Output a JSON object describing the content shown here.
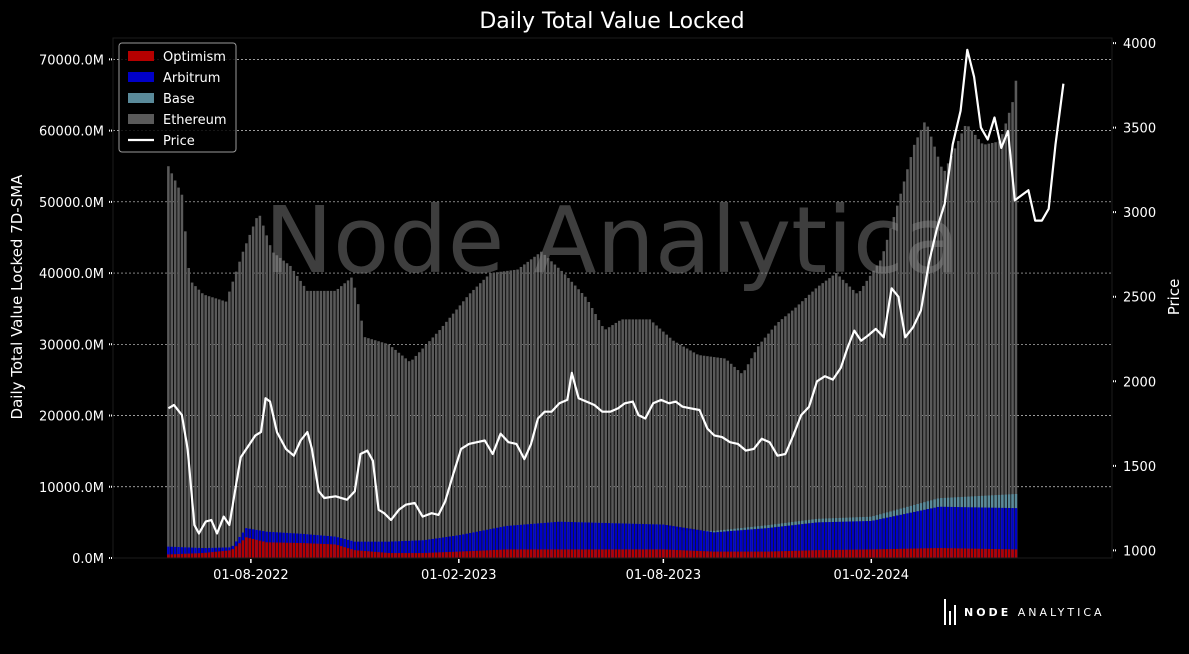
{
  "chart_data": {
    "type": "bar",
    "title": "Daily Total Value Locked",
    "ylabel": "Daily Total Value Locked 7D-SMA",
    "y2label": "Price",
    "ylim": [
      0,
      73000
    ],
    "y2lim": [
      955,
      4030
    ],
    "yticks": [
      "0.0M",
      "10000.0M",
      "20000.0M",
      "30000.0M",
      "40000.0M",
      "50000.0M",
      "60000.0M",
      "70000.0M"
    ],
    "y2ticks": [
      "1000",
      "1500",
      "2000",
      "2500",
      "3000",
      "3500",
      "4000"
    ],
    "xticks": [
      "01-08-2022",
      "01-02-2023",
      "01-08-2023",
      "01-02-2024"
    ],
    "xtick_dates": [
      "2022-08-01",
      "2023-02-01",
      "2023-08-01",
      "2024-02-01"
    ],
    "xlim": [
      "2022-04-01",
      "2024-09-01"
    ],
    "first_bar_date": "2022-05-20",
    "last_bar_date": "2024-06-10",
    "stacked": true,
    "legend_position": "top-left",
    "grid": "horizontal dashed",
    "watermark": "Node Analytica",
    "series": [
      {
        "name": "Optimism",
        "color": "#b50000",
        "points": [
          [
            "2022-05-20",
            500
          ],
          [
            "2022-06-20",
            700
          ],
          [
            "2022-07-15",
            1100
          ],
          [
            "2022-07-28",
            2900
          ],
          [
            "2022-08-15",
            2200
          ],
          [
            "2022-09-15",
            2100
          ],
          [
            "2022-10-15",
            1900
          ],
          [
            "2022-11-01",
            1100
          ],
          [
            "2022-12-01",
            700
          ],
          [
            "2023-01-01",
            700
          ],
          [
            "2023-02-01",
            900
          ],
          [
            "2023-03-15",
            1200
          ],
          [
            "2023-05-01",
            1200
          ],
          [
            "2023-06-15",
            1200
          ],
          [
            "2023-08-01",
            1200
          ],
          [
            "2023-09-15",
            900
          ],
          [
            "2023-11-01",
            900
          ],
          [
            "2023-12-15",
            1100
          ],
          [
            "2024-02-01",
            1200
          ],
          [
            "2024-04-01",
            1400
          ],
          [
            "2024-06-10",
            1200
          ]
        ]
      },
      {
        "name": "Arbitrum",
        "color": "#0000c8",
        "points": [
          [
            "2022-05-20",
            1600
          ],
          [
            "2022-06-20",
            1400
          ],
          [
            "2022-07-15",
            1500
          ],
          [
            "2022-07-28",
            4200
          ],
          [
            "2022-08-15",
            3700
          ],
          [
            "2022-09-15",
            3400
          ],
          [
            "2022-10-15",
            3000
          ],
          [
            "2022-11-01",
            2300
          ],
          [
            "2022-12-01",
            2300
          ],
          [
            "2023-01-01",
            2500
          ],
          [
            "2023-02-01",
            3200
          ],
          [
            "2023-03-15",
            4500
          ],
          [
            "2023-05-01",
            5100
          ],
          [
            "2023-06-15",
            4900
          ],
          [
            "2023-08-01",
            4700
          ],
          [
            "2023-09-15",
            3600
          ],
          [
            "2023-11-01",
            4200
          ],
          [
            "2023-12-15",
            5000
          ],
          [
            "2024-02-01",
            5200
          ],
          [
            "2024-04-01",
            7200
          ],
          [
            "2024-06-10",
            7000
          ]
        ]
      },
      {
        "name": "Base",
        "color": "#5a8a9a",
        "points": [
          [
            "2022-05-20",
            1600
          ],
          [
            "2022-06-20",
            1400
          ],
          [
            "2022-07-15",
            1500
          ],
          [
            "2022-07-28",
            4200
          ],
          [
            "2022-08-15",
            3700
          ],
          [
            "2022-09-15",
            3400
          ],
          [
            "2022-10-15",
            3000
          ],
          [
            "2022-11-01",
            2300
          ],
          [
            "2022-12-01",
            2300
          ],
          [
            "2023-01-01",
            2500
          ],
          [
            "2023-02-01",
            3200
          ],
          [
            "2023-03-15",
            4500
          ],
          [
            "2023-05-01",
            5100
          ],
          [
            "2023-06-15",
            4900
          ],
          [
            "2023-08-01",
            4700
          ],
          [
            "2023-08-15",
            3900
          ],
          [
            "2023-09-15",
            3800
          ],
          [
            "2023-11-01",
            4600
          ],
          [
            "2023-12-15",
            5500
          ],
          [
            "2024-02-01",
            5800
          ],
          [
            "2024-04-01",
            8400
          ],
          [
            "2024-06-10",
            9000
          ]
        ]
      },
      {
        "name": "Ethereum",
        "color": "#5a5a5a",
        "points": [
          [
            "2022-05-20",
            55000
          ],
          [
            "2022-06-01",
            51000
          ],
          [
            "2022-06-08",
            39000
          ],
          [
            "2022-06-20",
            37000
          ],
          [
            "2022-07-10",
            36000
          ],
          [
            "2022-07-25",
            43000
          ],
          [
            "2022-08-08",
            48500
          ],
          [
            "2022-08-20",
            43000
          ],
          [
            "2022-09-05",
            41000
          ],
          [
            "2022-09-20",
            37500
          ],
          [
            "2022-10-15",
            37500
          ],
          [
            "2022-10-30",
            39500
          ],
          [
            "2022-11-10",
            31000
          ],
          [
            "2022-12-01",
            30000
          ],
          [
            "2022-12-20",
            27500
          ],
          [
            "2023-01-15",
            32000
          ],
          [
            "2023-02-10",
            37000
          ],
          [
            "2023-03-01",
            40000
          ],
          [
            "2023-03-25",
            40500
          ],
          [
            "2023-04-15",
            43000
          ],
          [
            "2023-05-05",
            40000
          ],
          [
            "2023-05-25",
            36500
          ],
          [
            "2023-06-10",
            32000
          ],
          [
            "2023-06-25",
            33500
          ],
          [
            "2023-07-20",
            33500
          ],
          [
            "2023-08-10",
            30500
          ],
          [
            "2023-09-01",
            28500
          ],
          [
            "2023-09-25",
            28000
          ],
          [
            "2023-10-10",
            25800
          ],
          [
            "2023-10-25",
            30000
          ],
          [
            "2023-11-10",
            33000
          ],
          [
            "2023-11-25",
            35000
          ],
          [
            "2023-12-15",
            38000
          ],
          [
            "2024-01-01",
            40000
          ],
          [
            "2024-01-20",
            37000
          ],
          [
            "2024-02-10",
            42000
          ],
          [
            "2024-02-25",
            50000
          ],
          [
            "2024-03-10",
            58000
          ],
          [
            "2024-03-20",
            61500
          ],
          [
            "2024-04-05",
            54000
          ],
          [
            "2024-04-25",
            61000
          ],
          [
            "2024-05-10",
            58000
          ],
          [
            "2024-05-25",
            58500
          ],
          [
            "2024-06-05",
            64000
          ],
          [
            "2024-06-10",
            69000
          ]
        ]
      },
      {
        "name": "Price",
        "color": "#ffffff",
        "axis": "right",
        "points": [
          [
            "2022-05-20",
            1840
          ],
          [
            "2022-05-25",
            1860
          ],
          [
            "2022-06-01",
            1800
          ],
          [
            "2022-06-06",
            1600
          ],
          [
            "2022-06-12",
            1150
          ],
          [
            "2022-06-16",
            1100
          ],
          [
            "2022-06-22",
            1170
          ],
          [
            "2022-06-27",
            1180
          ],
          [
            "2022-07-02",
            1100
          ],
          [
            "2022-07-08",
            1200
          ],
          [
            "2022-07-13",
            1150
          ],
          [
            "2022-07-18",
            1350
          ],
          [
            "2022-07-23",
            1550
          ],
          [
            "2022-07-28",
            1600
          ],
          [
            "2022-08-05",
            1680
          ],
          [
            "2022-08-10",
            1700
          ],
          [
            "2022-08-14",
            1900
          ],
          [
            "2022-08-18",
            1880
          ],
          [
            "2022-08-24",
            1700
          ],
          [
            "2022-09-01",
            1600
          ],
          [
            "2022-09-08",
            1560
          ],
          [
            "2022-09-14",
            1650
          ],
          [
            "2022-09-20",
            1700
          ],
          [
            "2022-09-24",
            1600
          ],
          [
            "2022-09-30",
            1350
          ],
          [
            "2022-10-05",
            1310
          ],
          [
            "2022-10-15",
            1320
          ],
          [
            "2022-10-25",
            1300
          ],
          [
            "2022-11-01",
            1350
          ],
          [
            "2022-11-06",
            1570
          ],
          [
            "2022-11-12",
            1590
          ],
          [
            "2022-11-17",
            1530
          ],
          [
            "2022-11-22",
            1240
          ],
          [
            "2022-11-27",
            1220
          ],
          [
            "2022-12-03",
            1180
          ],
          [
            "2022-12-10",
            1240
          ],
          [
            "2022-12-16",
            1270
          ],
          [
            "2022-12-24",
            1280
          ],
          [
            "2022-12-31",
            1200
          ],
          [
            "2023-01-08",
            1220
          ],
          [
            "2023-01-14",
            1210
          ],
          [
            "2023-01-20",
            1290
          ],
          [
            "2023-01-27",
            1450
          ],
          [
            "2023-02-03",
            1600
          ],
          [
            "2023-02-10",
            1630
          ],
          [
            "2023-02-17",
            1640
          ],
          [
            "2023-02-24",
            1650
          ],
          [
            "2023-03-03",
            1570
          ],
          [
            "2023-03-10",
            1690
          ],
          [
            "2023-03-17",
            1640
          ],
          [
            "2023-03-24",
            1630
          ],
          [
            "2023-03-31",
            1540
          ],
          [
            "2023-04-06",
            1630
          ],
          [
            "2023-04-12",
            1780
          ],
          [
            "2023-04-18",
            1820
          ],
          [
            "2023-04-24",
            1820
          ],
          [
            "2023-05-01",
            1870
          ],
          [
            "2023-05-08",
            1890
          ],
          [
            "2023-05-12",
            2050
          ],
          [
            "2023-05-18",
            1900
          ],
          [
            "2023-05-25",
            1880
          ],
          [
            "2023-06-01",
            1860
          ],
          [
            "2023-06-08",
            1820
          ],
          [
            "2023-06-15",
            1820
          ],
          [
            "2023-06-22",
            1840
          ],
          [
            "2023-06-28",
            1870
          ],
          [
            "2023-07-05",
            1880
          ],
          [
            "2023-07-10",
            1800
          ],
          [
            "2023-07-16",
            1780
          ],
          [
            "2023-07-23",
            1870
          ],
          [
            "2023-07-30",
            1890
          ],
          [
            "2023-08-06",
            1870
          ],
          [
            "2023-08-12",
            1880
          ],
          [
            "2023-08-18",
            1850
          ],
          [
            "2023-08-25",
            1840
          ],
          [
            "2023-09-02",
            1830
          ],
          [
            "2023-09-09",
            1720
          ],
          [
            "2023-09-15",
            1680
          ],
          [
            "2023-09-22",
            1670
          ],
          [
            "2023-09-29",
            1640
          ],
          [
            "2023-10-06",
            1630
          ],
          [
            "2023-10-13",
            1590
          ],
          [
            "2023-10-20",
            1600
          ],
          [
            "2023-10-27",
            1660
          ],
          [
            "2023-11-03",
            1640
          ],
          [
            "2023-11-10",
            1560
          ],
          [
            "2023-11-17",
            1570
          ],
          [
            "2023-11-24",
            1680
          ],
          [
            "2023-12-01",
            1800
          ],
          [
            "2023-12-08",
            1850
          ],
          [
            "2023-12-15",
            2000
          ],
          [
            "2023-12-22",
            2030
          ],
          [
            "2023-12-29",
            2010
          ],
          [
            "2024-01-05",
            2080
          ],
          [
            "2024-01-11",
            2200
          ],
          [
            "2024-01-17",
            2300
          ],
          [
            "2024-01-23",
            2240
          ],
          [
            "2024-01-29",
            2270
          ],
          [
            "2024-02-05",
            2310
          ],
          [
            "2024-02-12",
            2260
          ],
          [
            "2024-02-19",
            2550
          ],
          [
            "2024-02-25",
            2500
          ],
          [
            "2024-03-02",
            2260
          ],
          [
            "2024-03-09",
            2320
          ],
          [
            "2024-03-16",
            2420
          ],
          [
            "2024-03-23",
            2700
          ],
          [
            "2024-03-30",
            2900
          ],
          [
            "2024-04-06",
            3050
          ],
          [
            "2024-04-13",
            3400
          ],
          [
            "2024-04-20",
            3600
          ],
          [
            "2024-04-26",
            3960
          ],
          [
            "2024-05-02",
            3800
          ],
          [
            "2024-05-08",
            3500
          ],
          [
            "2024-05-14",
            3430
          ],
          [
            "2024-05-20",
            3560
          ],
          [
            "2024-05-26",
            3380
          ],
          [
            "2024-06-01",
            3480
          ],
          [
            "2024-06-07",
            3070
          ],
          [
            "2024-06-13",
            3100
          ],
          [
            "2024-06-19",
            3130
          ],
          [
            "2024-06-25",
            2950
          ],
          [
            "2024-07-01",
            2950
          ],
          [
            "2024-07-07",
            3020
          ],
          [
            "2024-07-13",
            3400
          ],
          [
            "2024-07-20",
            3760
          ]
        ]
      }
    ]
  },
  "branding": {
    "word1": "NODE",
    "word2": "ANALYTICA"
  }
}
